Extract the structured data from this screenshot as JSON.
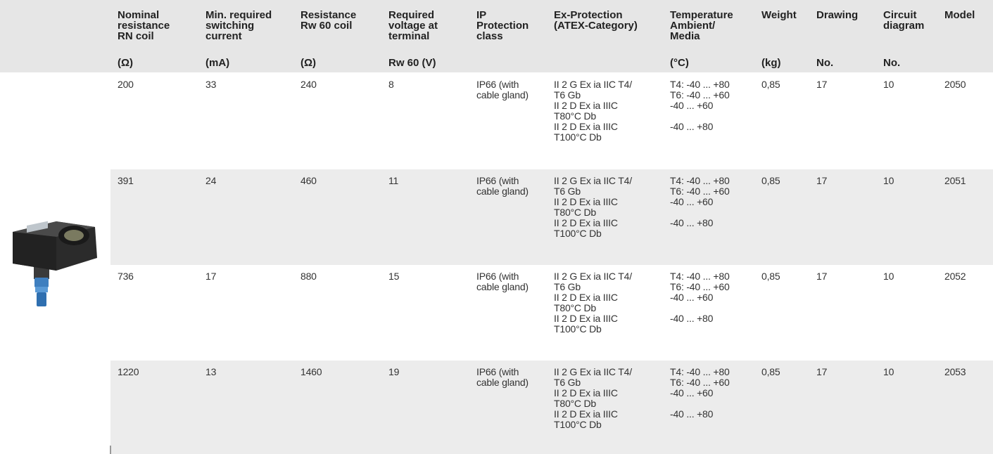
{
  "table": {
    "header": [
      {
        "label": [
          "Nominal",
          "resistance",
          "RN coil"
        ],
        "unit": "(Ω)"
      },
      {
        "label": [
          "Min. required",
          "switching",
          "current"
        ],
        "unit": "(mA)"
      },
      {
        "label": [
          "Resistance",
          "Rw 60 coil"
        ],
        "unit": "(Ω)"
      },
      {
        "label": [
          "Required",
          "voltage at",
          "terminal"
        ],
        "unit": "Rw 60 (V)"
      },
      {
        "label": [
          "IP",
          "Protection",
          "class"
        ]
      },
      {
        "label": [
          "Ex-Protection",
          "(ATEX-Category)"
        ]
      },
      {
        "label": [
          "Temperature",
          "Ambient/",
          "Media"
        ],
        "unit": "(°C)"
      },
      {
        "label": [
          "Weight"
        ],
        "unit": "(kg)"
      },
      {
        "label": [
          "Drawing"
        ],
        "unit": "No."
      },
      {
        "label": [
          "Circuit",
          "diagram"
        ],
        "unit": "No."
      },
      {
        "label": [
          "Model"
        ]
      }
    ],
    "rows": [
      [
        "200",
        "33",
        "240",
        "8",
        [
          "IP66 (with",
          "cable gland)"
        ],
        [
          [
            "II 2 G Ex ia IIC T4/",
            "T6 Gb"
          ],
          [
            "II 2 D Ex ia IIIC",
            "T80°C Db"
          ],
          [
            "II 2 D Ex ia IIIC",
            "T100°C Db"
          ]
        ],
        [
          [
            "T4: -40 ... +80",
            "T6: -40 ... +60"
          ],
          [
            "-40 ... +60"
          ],
          [
            "-40 ... +80"
          ]
        ],
        "0,85",
        "17",
        "10",
        "2050"
      ],
      [
        "391",
        "24",
        "460",
        "11",
        [
          "IP66 (with",
          "cable gland)"
        ],
        [
          [
            "II 2 G Ex ia IIC T4/",
            "T6 Gb"
          ],
          [
            "II 2 D Ex ia IIIC",
            "T80°C Db"
          ],
          [
            "II 2 D Ex ia IIIC",
            "T100°C Db"
          ]
        ],
        [
          [
            "T4: -40 ... +80",
            "T6: -40 ... +60"
          ],
          [
            "-40 ... +60"
          ],
          [
            "-40 ... +80"
          ]
        ],
        "0,85",
        "17",
        "10",
        "2051"
      ],
      [
        "736",
        "17",
        "880",
        "15",
        [
          "IP66 (with",
          "cable gland)"
        ],
        [
          [
            "II 2 G Ex ia IIC T4/",
            "T6 Gb"
          ],
          [
            "II 2 D Ex ia IIIC",
            "T80°C Db"
          ],
          [
            "II 2 D Ex ia IIIC",
            "T100°C Db"
          ]
        ],
        [
          [
            "T4: -40 ... +80",
            "T6: -40 ... +60"
          ],
          [
            "-40 ... +60"
          ],
          [
            "-40 ... +80"
          ]
        ],
        "0,85",
        "17",
        "10",
        "2052"
      ],
      [
        "1220",
        "13",
        "1460",
        "19",
        [
          "IP66 (with",
          "cable gland)"
        ],
        [
          [
            "II 2 G Ex ia IIC T4/",
            "T6 Gb"
          ],
          [
            "II 2 D Ex ia IIIC",
            "T80°C Db"
          ],
          [
            "II 2 D Ex ia IIIC",
            "T100°C Db"
          ]
        ],
        [
          [
            "T4: -40 ... +80",
            "T6: -40 ... +60"
          ],
          [
            "-40 ... +60"
          ],
          [
            "-40 ... +80"
          ]
        ],
        "0,85",
        "17",
        "10",
        "2053"
      ]
    ]
  }
}
